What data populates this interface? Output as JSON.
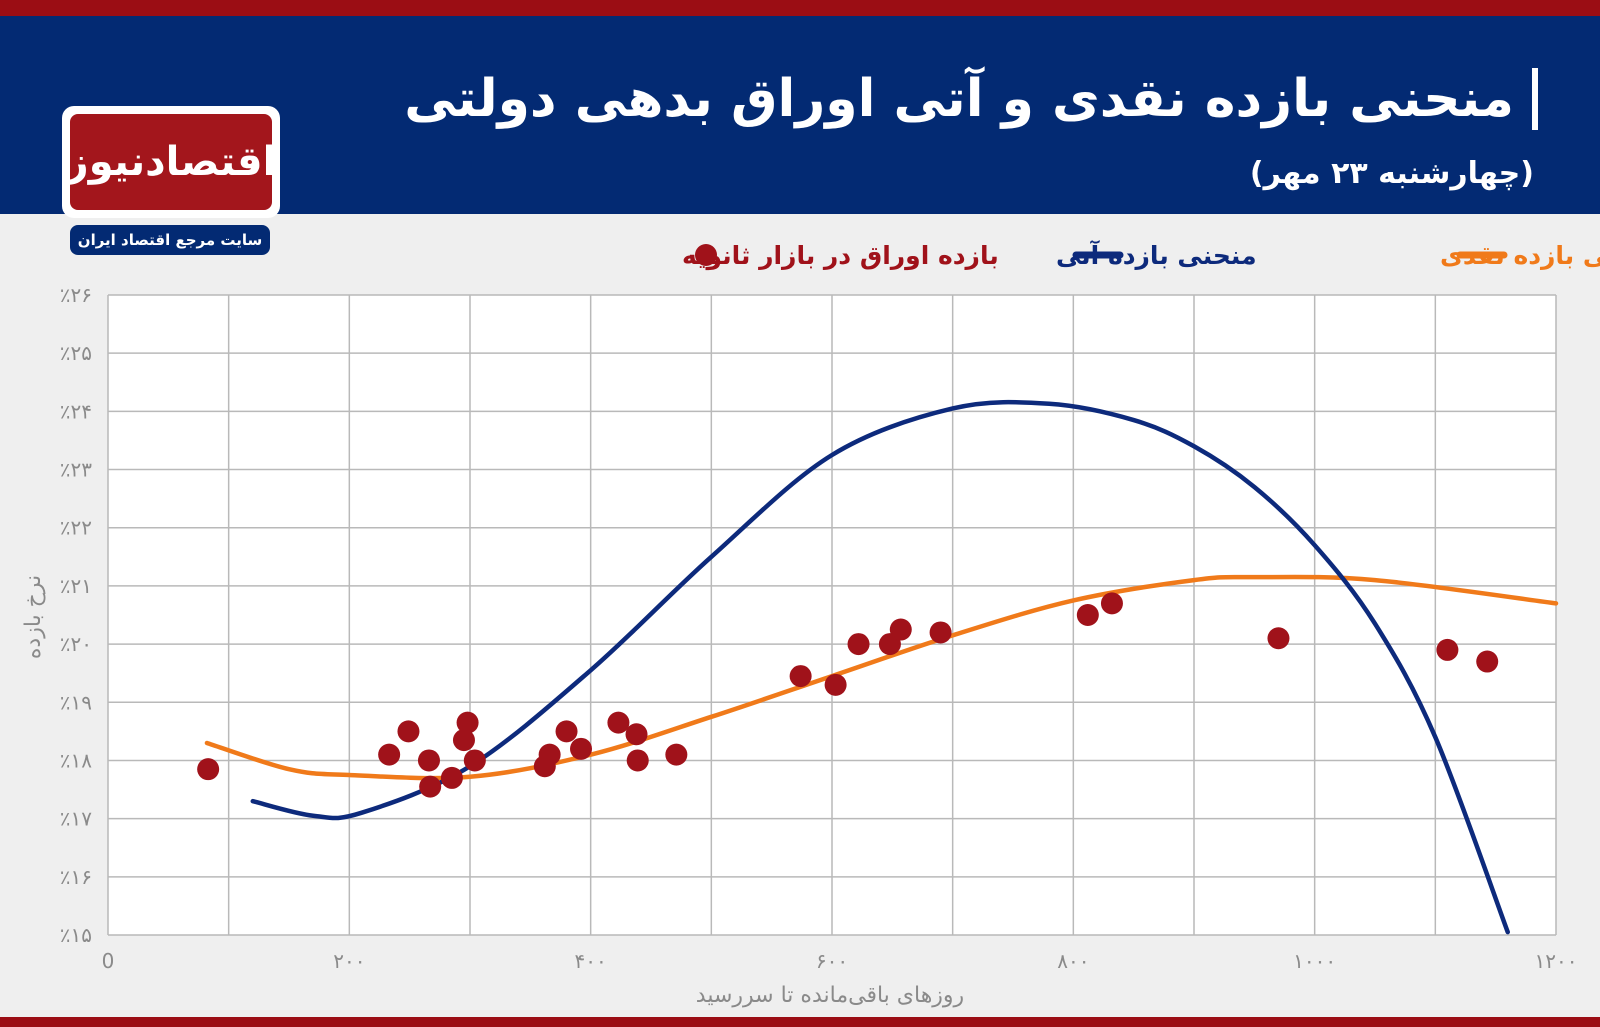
{
  "header": {
    "title": "منحنی بازده نقدی و آتی اوراق بدهی دولتی",
    "subtitle": "(چهارشنبه ۲۳ مهر)"
  },
  "logo": {
    "name": "اقتصادنیوز",
    "tagline": "سایت مرجع اقتصاد ایران"
  },
  "colors": {
    "header_bg": "#032a73",
    "stripe": "#9b0d14",
    "spot_curve": "#f07a1a",
    "forward_curve": "#0d2a7c",
    "points": "#a0121a"
  },
  "chart_data": {
    "type": "scatter",
    "xlabel": "روزهای باقی‌مانده تا سررسید",
    "ylabel": "نرخ بازده",
    "xlim": [
      0,
      1200
    ],
    "ylim": [
      15,
      26
    ],
    "x_ticks": [
      0,
      200,
      400,
      600,
      800,
      1000,
      1200
    ],
    "x_tick_labels": [
      "0",
      "۲۰۰",
      "۴۰۰",
      "۶۰۰",
      "۸۰۰",
      "۱۰۰۰",
      "۱۲۰۰"
    ],
    "y_ticks": [
      15,
      16,
      17,
      18,
      19,
      20,
      21,
      22,
      23,
      24,
      25,
      26
    ],
    "y_tick_labels": [
      "٪۱۵",
      "٪۱۶",
      "٪۱۷",
      "٪۱۸",
      "٪۱۹",
      "٪۲۰",
      "٪۲۱",
      "٪۲۲",
      "٪۲۳",
      "٪۲۴",
      "٪۲۵",
      "٪۲۶"
    ],
    "grid": true,
    "legend_position": "top",
    "series": [
      {
        "name": "منحنی بازده نقدی",
        "type": "line",
        "color": "#f07a1a",
        "x": [
          82,
          150,
          200,
          300,
          400,
          500,
          600,
          700,
          800,
          900,
          950,
          1050,
          1200
        ],
        "y": [
          18.3,
          17.85,
          17.75,
          17.72,
          18.1,
          18.75,
          19.45,
          20.15,
          20.75,
          21.1,
          21.15,
          21.1,
          20.7
        ]
      },
      {
        "name": "منحنی بازده آتی",
        "type": "line",
        "color": "#0d2a7c",
        "x": [
          120,
          170,
          210,
          300,
          400,
          500,
          600,
          700,
          780,
          850,
          900,
          950,
          1000,
          1050,
          1100,
          1160
        ],
        "y": [
          17.3,
          17.05,
          17.1,
          17.9,
          19.55,
          21.5,
          23.25,
          24.05,
          24.13,
          23.85,
          23.4,
          22.7,
          21.7,
          20.35,
          18.4,
          15.05
        ]
      },
      {
        "name": "بازده اوراق در بازار ثانویه",
        "type": "scatter",
        "color": "#a0121a",
        "x": [
          83,
          233,
          249,
          266,
          267,
          285,
          295,
          298,
          304,
          362,
          366,
          380,
          392,
          423,
          438,
          439,
          471,
          574,
          603,
          622,
          648,
          657,
          690,
          812,
          832,
          970,
          1110,
          1143
        ],
        "y": [
          17.85,
          18.1,
          18.5,
          18.0,
          17.55,
          17.7,
          18.35,
          18.65,
          18.0,
          17.9,
          18.1,
          18.5,
          18.2,
          18.65,
          18.45,
          18.0,
          18.1,
          19.45,
          19.3,
          20.0,
          20.0,
          20.25,
          20.2,
          20.5,
          20.7,
          20.1,
          19.9,
          19.7
        ]
      }
    ]
  }
}
